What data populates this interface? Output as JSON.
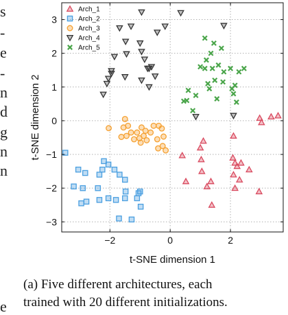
{
  "left_text_fragments": [
    "s",
    "-",
    "e",
    "-",
    "n",
    "d",
    "g",
    "n",
    "n",
    "e"
  ],
  "caption": {
    "line1": "(a) Five different architectures, each",
    "line2": "trained with 20 different initializations."
  },
  "chart_data": {
    "type": "scatter",
    "xlabel": "t-SNE dimension 1",
    "ylabel": "t-SNE dimension 2",
    "xlim": [
      -3.6,
      3.75
    ],
    "ylim": [
      -3.3,
      3.5
    ],
    "xticks": [
      -2,
      0,
      2
    ],
    "yticks": [
      -3,
      -2,
      -1,
      0,
      1,
      2,
      3
    ],
    "grid": true,
    "legend_position": "top-left",
    "series": [
      {
        "name": "Arch_1",
        "marker": "triangle-up",
        "color": "#d94a5f",
        "points": [
          [
            0.4,
            -1.03
          ],
          [
            0.52,
            -1.8
          ],
          [
            1.0,
            -0.8
          ],
          [
            1.03,
            -1.15
          ],
          [
            1.1,
            -0.6
          ],
          [
            1.05,
            -1.5
          ],
          [
            1.22,
            -1.95
          ],
          [
            1.38,
            -2.5
          ],
          [
            1.35,
            -1.8
          ],
          [
            2.08,
            -1.1
          ],
          [
            2.15,
            -1.25
          ],
          [
            2.1,
            -1.6
          ],
          [
            2.15,
            -2.0
          ],
          [
            2.22,
            -1.35
          ],
          [
            2.35,
            -1.25
          ],
          [
            2.3,
            -1.75
          ],
          [
            2.62,
            -1.45
          ],
          [
            2.95,
            -2.1
          ],
          [
            2.97,
            0.08
          ],
          [
            3.03,
            -0.05
          ],
          [
            3.35,
            0.12
          ],
          [
            3.58,
            0.15
          ],
          [
            2.1,
            -0.45
          ]
        ]
      },
      {
        "name": "Arch_2",
        "marker": "square",
        "color": "#4a9fe0",
        "points": [
          [
            -3.48,
            -0.95
          ],
          [
            -3.05,
            -1.45
          ],
          [
            -2.82,
            -1.55
          ],
          [
            -3.2,
            -1.95
          ],
          [
            -2.9,
            -2.0
          ],
          [
            -2.4,
            -2.0
          ],
          [
            -2.2,
            -1.2
          ],
          [
            -2.05,
            -1.3
          ],
          [
            -1.85,
            -1.45
          ],
          [
            -1.68,
            -1.6
          ],
          [
            -1.5,
            -1.75
          ],
          [
            -1.48,
            -2.1
          ],
          [
            -1.5,
            -2.3
          ],
          [
            -1.1,
            -2.3
          ],
          [
            -1.05,
            -2.15
          ],
          [
            -0.98,
            -2.55
          ],
          [
            -1.8,
            -2.35
          ],
          [
            -2.05,
            -2.3
          ],
          [
            -2.35,
            -2.35
          ],
          [
            -2.78,
            -2.4
          ],
          [
            -2.95,
            -2.45
          ],
          [
            -1.0,
            -2.1
          ],
          [
            -1.7,
            -2.9
          ],
          [
            -1.28,
            -2.93
          ],
          [
            -2.35,
            -1.6
          ],
          [
            -2.25,
            -1.45
          ]
        ]
      },
      {
        "name": "Arch_3",
        "marker": "circle",
        "color": "#f5a030",
        "points": [
          [
            -2.04,
            -0.22
          ],
          [
            -1.62,
            -0.48
          ],
          [
            -1.55,
            -0.2
          ],
          [
            -1.5,
            0.05
          ],
          [
            -1.45,
            -0.45
          ],
          [
            -1.4,
            -0.15
          ],
          [
            -1.3,
            -0.35
          ],
          [
            -1.2,
            -0.55
          ],
          [
            -1.1,
            -0.35
          ],
          [
            -1.02,
            -0.52
          ],
          [
            -0.98,
            -0.65
          ],
          [
            -0.95,
            -0.2
          ],
          [
            -0.88,
            -0.45
          ],
          [
            -0.82,
            -0.3
          ],
          [
            -0.78,
            -0.58
          ],
          [
            -0.65,
            -0.35
          ],
          [
            -0.55,
            -0.15
          ],
          [
            -0.43,
            -0.55
          ],
          [
            -0.38,
            -0.15
          ],
          [
            -0.28,
            -0.23
          ],
          [
            -0.22,
            -0.47
          ],
          [
            -0.4,
            -0.82
          ],
          [
            -0.25,
            -0.75
          ],
          [
            -0.15,
            -0.88
          ]
        ]
      },
      {
        "name": "Arch_4",
        "marker": "triangle-down",
        "color": "#333333",
        "points": [
          [
            -0.95,
            3.22
          ],
          [
            0.35,
            3.2
          ],
          [
            -0.17,
            2.8
          ],
          [
            -0.43,
            2.62
          ],
          [
            -1.3,
            2.8
          ],
          [
            -1.68,
            2.75
          ],
          [
            -1.48,
            2.35
          ],
          [
            -1.0,
            2.3
          ],
          [
            -0.95,
            2.05
          ],
          [
            -0.85,
            1.82
          ],
          [
            -0.75,
            1.55
          ],
          [
            -0.7,
            1.55
          ],
          [
            -0.62,
            1.6
          ],
          [
            -1.45,
            1.98
          ],
          [
            -1.85,
            1.9
          ],
          [
            -1.95,
            1.48
          ],
          [
            -2.05,
            1.25
          ],
          [
            -2.1,
            1.1
          ],
          [
            -1.95,
            1.4
          ],
          [
            -1.5,
            1.3
          ],
          [
            -0.95,
            1.2
          ],
          [
            -0.7,
            1.0
          ],
          [
            -0.5,
            1.32
          ],
          [
            -2.22,
            0.78
          ],
          [
            0.85,
            0.12
          ],
          [
            2.1,
            0.15
          ],
          [
            1.78,
            2.82
          ]
        ]
      },
      {
        "name": "Arch_5",
        "marker": "x",
        "color": "#4aa54a",
        "points": [
          [
            1.15,
            2.45
          ],
          [
            1.45,
            2.3
          ],
          [
            1.7,
            2.15
          ],
          [
            1.35,
            2.0
          ],
          [
            1.2,
            1.8
          ],
          [
            1.15,
            1.55
          ],
          [
            1.4,
            1.55
          ],
          [
            1.6,
            1.65
          ],
          [
            2.0,
            1.55
          ],
          [
            2.28,
            1.45
          ],
          [
            2.45,
            1.55
          ],
          [
            1.78,
            1.45
          ],
          [
            1.0,
            1.6
          ],
          [
            1.25,
            1.1
          ],
          [
            1.3,
            0.95
          ],
          [
            1.55,
            0.65
          ],
          [
            0.6,
            0.9
          ],
          [
            0.85,
            0.75
          ],
          [
            0.75,
            0.3
          ],
          [
            0.55,
            0.6
          ],
          [
            1.75,
            1.15
          ],
          [
            2.05,
            0.95
          ],
          [
            2.1,
            0.8
          ],
          [
            2.15,
            1.05
          ],
          [
            1.48,
            1.2
          ],
          [
            0.45,
            0.58
          ],
          [
            2.2,
            0.55
          ]
        ]
      }
    ]
  }
}
